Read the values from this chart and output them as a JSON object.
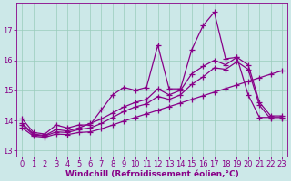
{
  "xlabel": "Windchill (Refroidissement éolien,°C)",
  "bg_color": "#cce8e8",
  "grid_color": "#99ccbb",
  "line_color": "#880088",
  "xlim": [
    -0.5,
    23.5
  ],
  "ylim": [
    12.8,
    17.9
  ],
  "xticks": [
    0,
    1,
    2,
    3,
    4,
    5,
    6,
    7,
    8,
    9,
    10,
    11,
    12,
    13,
    14,
    15,
    16,
    17,
    18,
    19,
    20,
    21,
    22,
    23
  ],
  "yticks": [
    13,
    14,
    15,
    16,
    17
  ],
  "line1_x": [
    0,
    1,
    2,
    3,
    4,
    5,
    6,
    7,
    8,
    9,
    10,
    11,
    12,
    13,
    14,
    15,
    16,
    17,
    18,
    19,
    20,
    21,
    22,
    23
  ],
  "line1_y": [
    14.05,
    13.6,
    13.55,
    13.85,
    13.75,
    13.85,
    13.85,
    14.35,
    14.85,
    15.1,
    15.0,
    15.1,
    16.5,
    15.05,
    15.05,
    16.35,
    17.15,
    17.6,
    16.05,
    16.1,
    14.85,
    14.1,
    14.1,
    14.1
  ],
  "line2_x": [
    0,
    1,
    2,
    3,
    4,
    5,
    6,
    7,
    8,
    9,
    10,
    11,
    12,
    13,
    14,
    15,
    16,
    17,
    18,
    19,
    20,
    21,
    22,
    23
  ],
  "line2_y": [
    13.9,
    13.55,
    13.5,
    13.7,
    13.65,
    13.75,
    13.9,
    14.05,
    14.25,
    14.45,
    14.6,
    14.7,
    15.05,
    14.85,
    15.0,
    15.55,
    15.8,
    16.0,
    15.85,
    16.1,
    15.85,
    14.6,
    14.15,
    14.15
  ],
  "line3_x": [
    0,
    1,
    2,
    3,
    4,
    5,
    6,
    7,
    8,
    9,
    10,
    11,
    12,
    13,
    14,
    15,
    16,
    17,
    18,
    19,
    20,
    21,
    22,
    23
  ],
  "line3_y": [
    13.85,
    13.52,
    13.48,
    13.62,
    13.6,
    13.7,
    13.75,
    13.9,
    14.1,
    14.3,
    14.45,
    14.55,
    14.8,
    14.7,
    14.85,
    15.2,
    15.45,
    15.75,
    15.7,
    15.95,
    15.7,
    14.5,
    14.05,
    14.05
  ],
  "line4_x": [
    0,
    1,
    2,
    3,
    4,
    5,
    6,
    7,
    8,
    9,
    10,
    11,
    12,
    13,
    14,
    15,
    16,
    17,
    18,
    19,
    20,
    21,
    22,
    23
  ],
  "line4_y": [
    13.75,
    13.48,
    13.44,
    13.55,
    13.53,
    13.6,
    13.62,
    13.72,
    13.85,
    13.98,
    14.1,
    14.22,
    14.34,
    14.46,
    14.58,
    14.7,
    14.82,
    14.94,
    15.06,
    15.18,
    15.3,
    15.42,
    15.54,
    15.65
  ],
  "xlabel_fontsize": 6.5,
  "tick_fontsize": 6.0
}
